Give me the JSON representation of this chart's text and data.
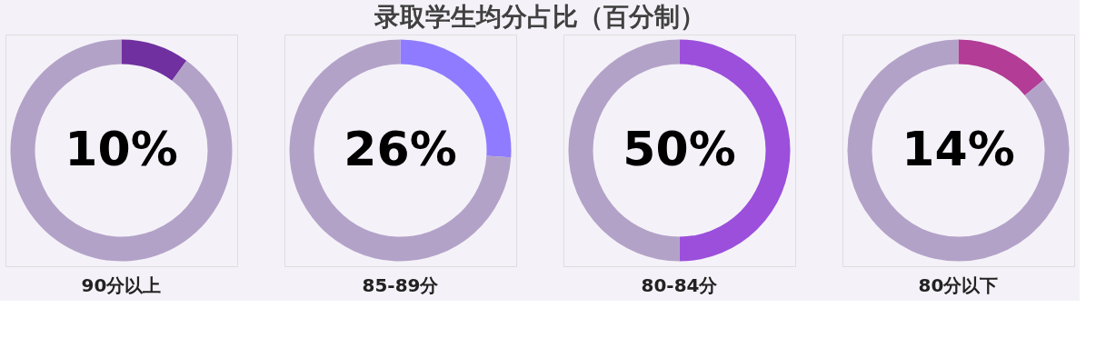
{
  "chart_data": [
    {
      "type": "donut",
      "title": "录取学生均分占比（百分制）",
      "xlabel": "90分以上",
      "categories": [
        null,
        null
      ],
      "values": [
        10,
        90
      ],
      "colors": [
        "#7030a0",
        "#b3a2c8"
      ],
      "value_labels": [
        "10%",
        null
      ],
      "legend": false
    },
    {
      "type": "donut",
      "xlabel": "85-89分",
      "categories": [
        null,
        null
      ],
      "values": [
        26,
        74
      ],
      "colors": [
        "#8f7bff",
        "#b3a2c8"
      ],
      "value_labels": [
        "26%",
        null
      ],
      "legend": false
    },
    {
      "type": "donut",
      "xlabel": "80-84分",
      "categories": [
        null,
        null
      ],
      "values": [
        50,
        50
      ],
      "colors": [
        "#9b4fdb",
        "#b3a2c8"
      ],
      "value_labels": [
        "50%",
        null
      ],
      "legend": false
    },
    {
      "type": "donut",
      "xlabel": "80分以下",
      "categories": [
        null,
        null
      ],
      "values": [
        14,
        86
      ],
      "colors": [
        "#b23c96",
        "#b3a2c8"
      ],
      "value_labels": [
        "14%",
        null
      ],
      "legend": false
    }
  ]
}
